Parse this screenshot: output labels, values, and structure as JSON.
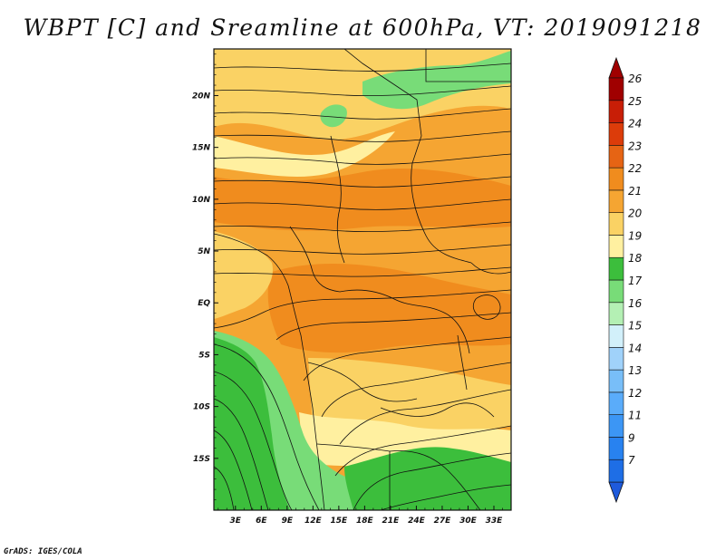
{
  "title": "WBPT [C] and Sreamline at 600hPa, VT: 2019091218",
  "credit": "GrADS: IGES/COLA",
  "map": {
    "lat_labels": [
      {
        "value": 20,
        "label": "20N"
      },
      {
        "value": 15,
        "label": "15N"
      },
      {
        "value": 10,
        "label": "10N"
      },
      {
        "value": 5,
        "label": "5N"
      },
      {
        "value": 0,
        "label": "EQ"
      },
      {
        "value": -5,
        "label": "5S"
      },
      {
        "value": -10,
        "label": "10S"
      },
      {
        "value": -15,
        "label": "15S"
      }
    ],
    "lon_labels": [
      {
        "value": 3,
        "label": "3E"
      },
      {
        "value": 6,
        "label": "6E"
      },
      {
        "value": 9,
        "label": "9E"
      },
      {
        "value": 12,
        "label": "12E"
      },
      {
        "value": 15,
        "label": "15E"
      },
      {
        "value": 18,
        "label": "18E"
      },
      {
        "value": 21,
        "label": "21E"
      },
      {
        "value": 24,
        "label": "24E"
      },
      {
        "value": 27,
        "label": "27E"
      },
      {
        "value": 30,
        "label": "30E"
      },
      {
        "value": 33,
        "label": "33E"
      }
    ]
  },
  "colorbar": {
    "levels": [
      {
        "label": "7",
        "color": "#1e6ee6"
      },
      {
        "label": "9",
        "color": "#2882f0"
      },
      {
        "label": "11",
        "color": "#3c96f5"
      },
      {
        "label": "12",
        "color": "#5aacfa"
      },
      {
        "label": "13",
        "color": "#78bef8"
      },
      {
        "label": "14",
        "color": "#a0d2fa"
      },
      {
        "label": "15",
        "color": "#d2f0fa"
      },
      {
        "label": "16",
        "color": "#b4f0b4"
      },
      {
        "label": "17",
        "color": "#78dc78"
      },
      {
        "label": "18",
        "color": "#3cbe3c"
      },
      {
        "label": "19",
        "color": "#fff0a0"
      },
      {
        "label": "20",
        "color": "#fad264"
      },
      {
        "label": "21",
        "color": "#f5a532"
      },
      {
        "label": "22",
        "color": "#f08c1e"
      },
      {
        "label": "23",
        "color": "#e66414"
      },
      {
        "label": "24",
        "color": "#dc3c0a"
      },
      {
        "label": "25",
        "color": "#c81e06"
      },
      {
        "label": "26",
        "color": "#a00000"
      }
    ],
    "low_color": "#1e5adc",
    "high_color": "#a00000"
  }
}
